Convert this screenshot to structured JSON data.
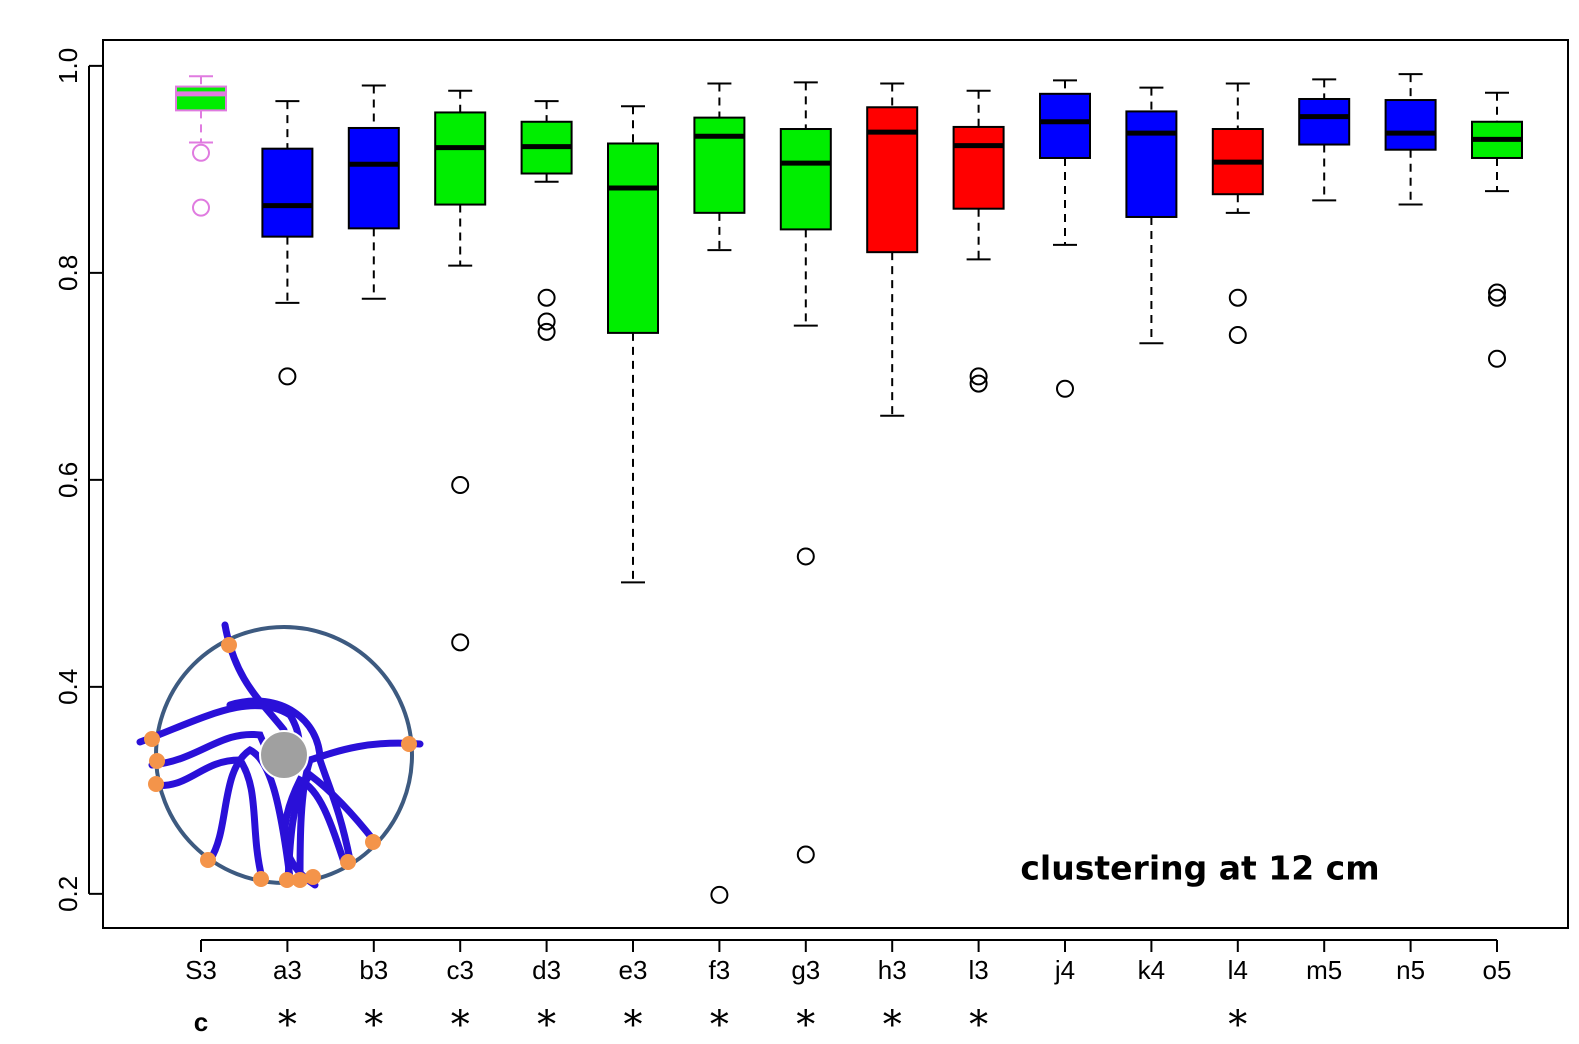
{
  "chart_data": {
    "type": "box",
    "annotation": "clustering at 12 cm",
    "categories": [
      "S3",
      "a3",
      "b3",
      "c3",
      "d3",
      "e3",
      "f3",
      "g3",
      "h3",
      "l3",
      "j4",
      "k4",
      "l4",
      "m5",
      "n5",
      "o5"
    ],
    "significance": [
      "c",
      "*",
      "*",
      "*",
      "*",
      "*",
      "*",
      "*",
      "*",
      "*",
      null,
      null,
      "*",
      null,
      null,
      null
    ],
    "ylim": [
      0.167,
      1.025
    ],
    "yticks": [
      0.2,
      0.4,
      0.6,
      0.8,
      {
        "value": 1,
        "label": "1.0"
      }
    ],
    "boxes": [
      {
        "whisker_high": 0.99,
        "q3": 0.98,
        "median": 0.973,
        "q1": 0.957,
        "whisker_low": 0.926,
        "outliers": [
          0.916,
          0.863
        ],
        "color": "#00ee00",
        "edge_color": "#e07be0"
      },
      {
        "whisker_high": 0.966,
        "q3": 0.92,
        "median": 0.865,
        "q1": 0.835,
        "whisker_low": 0.771,
        "outliers": [
          0.7
        ],
        "color": "#0000ff",
        "edge_color": "#000000"
      },
      {
        "whisker_high": 0.981,
        "q3": 0.94,
        "median": 0.905,
        "q1": 0.843,
        "whisker_low": 0.775,
        "outliers": [],
        "color": "#0000ff",
        "edge_color": "#000000"
      },
      {
        "whisker_high": 0.976,
        "q3": 0.955,
        "median": 0.921,
        "q1": 0.866,
        "whisker_low": 0.807,
        "outliers": [
          0.595,
          0.443
        ],
        "color": "#00ee00",
        "edge_color": "#000000"
      },
      {
        "whisker_high": 0.966,
        "q3": 0.946,
        "median": 0.922,
        "q1": 0.896,
        "whisker_low": 0.888,
        "outliers": [
          0.776,
          0.753,
          0.743
        ],
        "color": "#00ee00",
        "edge_color": "#000000"
      },
      {
        "whisker_high": 0.961,
        "q3": 0.925,
        "median": 0.882,
        "q1": 0.742,
        "whisker_low": 0.501,
        "outliers": [],
        "color": "#00ee00",
        "edge_color": "#000000"
      },
      {
        "whisker_high": 0.983,
        "q3": 0.95,
        "median": 0.932,
        "q1": 0.858,
        "whisker_low": 0.822,
        "outliers": [
          0.199
        ],
        "color": "#00ee00",
        "edge_color": "#000000"
      },
      {
        "whisker_high": 0.984,
        "q3": 0.939,
        "median": 0.906,
        "q1": 0.842,
        "whisker_low": 0.749,
        "outliers": [
          0.526,
          0.238
        ],
        "color": "#00ee00",
        "edge_color": "#000000"
      },
      {
        "whisker_high": 0.983,
        "q3": 0.96,
        "median": 0.936,
        "q1": 0.82,
        "whisker_low": 0.662,
        "outliers": [],
        "color": "#ff0000",
        "edge_color": "#000000"
      },
      {
        "whisker_high": 0.976,
        "q3": 0.941,
        "median": 0.923,
        "q1": 0.862,
        "whisker_low": 0.813,
        "outliers": [
          0.7,
          0.693
        ],
        "color": "#ff0000",
        "edge_color": "#000000"
      },
      {
        "whisker_high": 0.986,
        "q3": 0.973,
        "median": 0.946,
        "q1": 0.911,
        "whisker_low": 0.827,
        "outliers": [
          0.688
        ],
        "color": "#0000ff",
        "edge_color": "#000000"
      },
      {
        "whisker_high": 0.979,
        "q3": 0.956,
        "median": 0.935,
        "q1": 0.854,
        "whisker_low": 0.732,
        "outliers": [],
        "color": "#0000ff",
        "edge_color": "#000000"
      },
      {
        "whisker_high": 0.983,
        "q3": 0.939,
        "median": 0.907,
        "q1": 0.876,
        "whisker_low": 0.858,
        "outliers": [
          0.776,
          0.74
        ],
        "color": "#ff0000",
        "edge_color": "#000000"
      },
      {
        "whisker_high": 0.987,
        "q3": 0.968,
        "median": 0.951,
        "q1": 0.924,
        "whisker_low": 0.87,
        "outliers": [],
        "color": "#0000ff",
        "edge_color": "#000000"
      },
      {
        "whisker_high": 0.992,
        "q3": 0.967,
        "median": 0.935,
        "q1": 0.919,
        "whisker_low": 0.866,
        "outliers": [],
        "color": "#0000ff",
        "edge_color": "#000000"
      },
      {
        "whisker_high": 0.974,
        "q3": 0.946,
        "median": 0.929,
        "q1": 0.911,
        "whisker_low": 0.879,
        "outliers": [
          0.781,
          0.776,
          0.717
        ],
        "color": "#00ee00",
        "edge_color": "#000000"
      }
    ]
  }
}
